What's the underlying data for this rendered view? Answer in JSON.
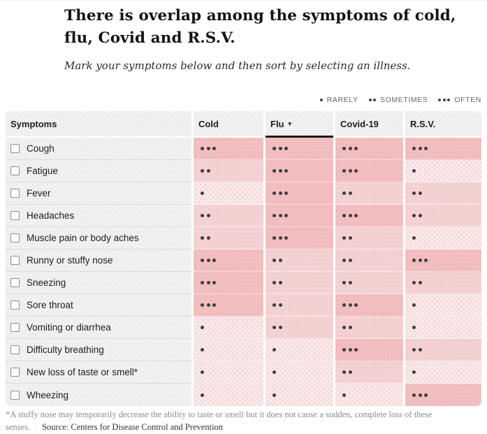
{
  "header": {
    "title": "There is overlap among the symptoms of cold, flu, Covid and R.S.V.",
    "subtitle": "Mark your symptoms below and then sort by selecting an illness."
  },
  "legend": {
    "items": [
      {
        "dots": 1,
        "label": "RARELY"
      },
      {
        "dots": 2,
        "label": "SOMETIMES"
      },
      {
        "dots": 3,
        "label": "OFTEN"
      }
    ]
  },
  "table": {
    "symptom_header": "Symptoms",
    "sort_icon": "▾"
  },
  "chart_data": {
    "type": "heatmap",
    "title": "There is overlap among the symptoms of cold, flu, Covid and R.S.V.",
    "columns": [
      "Cold",
      "Flu",
      "Covid-19",
      "R.S.V."
    ],
    "sorted_column": "Flu",
    "rows": [
      "Cough",
      "Fatigue",
      "Fever",
      "Headaches",
      "Muscle pain or body aches",
      "Runny or stuffy nose",
      "Sneezing",
      "Sore throat",
      "Vomiting or diarrhea",
      "Difficulty breathing",
      "New loss of taste or smell*",
      "Wheezing"
    ],
    "values": [
      [
        3,
        3,
        3,
        3
      ],
      [
        2,
        3,
        3,
        1
      ],
      [
        1,
        3,
        2,
        2
      ],
      [
        2,
        3,
        3,
        2
      ],
      [
        2,
        3,
        2,
        1
      ],
      [
        3,
        2,
        2,
        3
      ],
      [
        3,
        2,
        2,
        2
      ],
      [
        3,
        2,
        3,
        1
      ],
      [
        1,
        2,
        2,
        1
      ],
      [
        1,
        1,
        3,
        2
      ],
      [
        1,
        1,
        2,
        1
      ],
      [
        1,
        1,
        1,
        3
      ]
    ],
    "value_labels": {
      "1": "RARELY",
      "2": "SOMETIMES",
      "3": "OFTEN"
    },
    "cell_colors": {
      "1": "#F9E8E8",
      "2": "#F4D2D3",
      "3": "#F2BEC0"
    },
    "checkbox_states": [
      false,
      false,
      false,
      false,
      false,
      false,
      false,
      false,
      false,
      false,
      false,
      false
    ]
  },
  "footnote": {
    "text": "*A stuffy nose may temporarily decrease the ability to taste or smell but it does not cause a sudden, complete loss of these senses.",
    "separator": "·",
    "source": "Source: Centers for Disease Control and Prevention"
  }
}
